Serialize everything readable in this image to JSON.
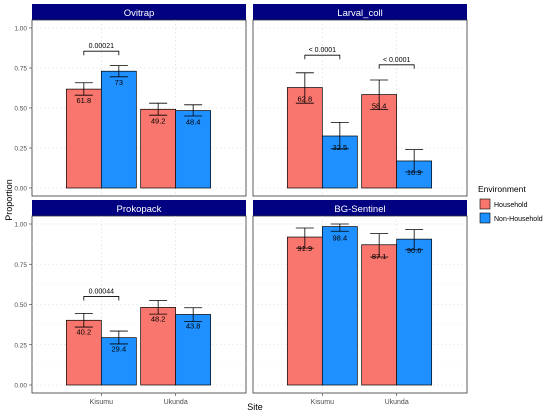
{
  "chart_data": {
    "type": "bar",
    "xlabel": "Site",
    "ylabel": "Proportion",
    "ylim": [
      0,
      1
    ],
    "yticks": [
      "0.00",
      "0.25",
      "0.50",
      "0.75",
      "1.00"
    ],
    "categories": [
      "Kisumu",
      "Ukunda"
    ],
    "legend": {
      "title": "Environment",
      "entries": [
        {
          "name": "Household",
          "color": "#F8766D"
        },
        {
          "name": "Non-Household",
          "color": "#1E90FF"
        }
      ],
      "position": "right"
    },
    "strip_color": "#000080",
    "grid": true,
    "panels": [
      {
        "title": "Ovitrap",
        "series": [
          {
            "name": "Household",
            "values": [
              0.618,
              0.492
            ],
            "err_low": [
              0.58,
              0.455
            ],
            "err_high": [
              0.658,
              0.53
            ],
            "labels": [
              "61.8",
              "49.2"
            ]
          },
          {
            "name": "Non-Household",
            "values": [
              0.73,
              0.484
            ],
            "err_low": [
              0.695,
              0.45
            ],
            "err_high": [
              0.765,
              0.52
            ],
            "labels": [
              "73",
              "48.4"
            ]
          }
        ],
        "annotations": [
          {
            "category_index": 0,
            "text": "0.00021",
            "y": 0.855
          }
        ]
      },
      {
        "title": "Larval_coll",
        "series": [
          {
            "name": "Household",
            "values": [
              0.628,
              0.584
            ],
            "err_low": [
              0.53,
              0.49
            ],
            "err_high": [
              0.72,
              0.675
            ],
            "labels": [
              "62.8",
              "58.4"
            ]
          },
          {
            "name": "Non-Household",
            "values": [
              0.325,
              0.169
            ],
            "err_low": [
              0.245,
              0.1
            ],
            "err_high": [
              0.41,
              0.24
            ],
            "labels": [
              "32.5",
              "16.9"
            ]
          }
        ],
        "annotations": [
          {
            "category_index": 0,
            "text": "< 0.0001",
            "y": 0.83
          },
          {
            "category_index": 1,
            "text": "< 0.0001",
            "y": 0.77
          }
        ]
      },
      {
        "title": "Prokopack",
        "series": [
          {
            "name": "Household",
            "values": [
              0.402,
              0.482
            ],
            "err_low": [
              0.36,
              0.44
            ],
            "err_high": [
              0.445,
              0.525
            ],
            "labels": [
              "40.2",
              "48.2"
            ]
          },
          {
            "name": "Non-Household",
            "values": [
              0.294,
              0.438
            ],
            "err_low": [
              0.255,
              0.395
            ],
            "err_high": [
              0.335,
              0.48
            ],
            "labels": [
              "29.4",
              "43.8"
            ]
          }
        ],
        "annotations": [
          {
            "category_index": 0,
            "text": "0.00044",
            "y": 0.55
          }
        ]
      },
      {
        "title": "BG-Sentinel",
        "series": [
          {
            "name": "Household",
            "values": [
              0.919,
              0.871
            ],
            "err_low": [
              0.85,
              0.795
            ],
            "err_high": [
              0.975,
              0.94
            ],
            "labels": [
              "91.9",
              "87.1"
            ]
          },
          {
            "name": "Non-Household",
            "values": [
              0.984,
              0.906
            ],
            "err_low": [
              0.955,
              0.84
            ],
            "err_high": [
              1.0,
              0.965
            ],
            "labels": [
              "98.4",
              "90.6"
            ]
          }
        ],
        "annotations": []
      }
    ]
  }
}
